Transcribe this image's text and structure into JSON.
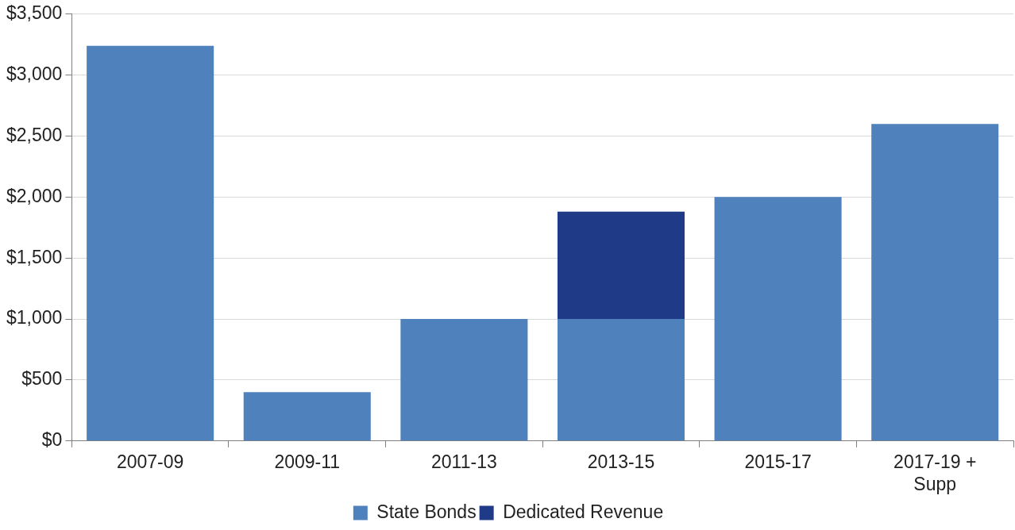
{
  "chart_data": {
    "type": "bar",
    "stacked": true,
    "categories": [
      "2007-09",
      "2009-11",
      "2011-13",
      "2013-15",
      "2015-17",
      "2017-19 + Supp"
    ],
    "series": [
      {
        "name": "State Bonds",
        "color": "#4f81bd",
        "values": [
          3240,
          400,
          1000,
          1000,
          2000,
          2600
        ]
      },
      {
        "name": "Dedicated Revenue",
        "color": "#1f3b87",
        "values": [
          null,
          null,
          null,
          880,
          null,
          null
        ]
      }
    ],
    "ylim": [
      0,
      3500
    ],
    "yticks": [
      {
        "value": 0,
        "label": "$0"
      },
      {
        "value": 500,
        "label": "$500"
      },
      {
        "value": 1000,
        "label": "$1,000"
      },
      {
        "value": 1500,
        "label": "$1,500"
      },
      {
        "value": 2000,
        "label": "$2,000"
      },
      {
        "value": 2500,
        "label": "$2,500"
      },
      {
        "value": 3000,
        "label": "$3,000"
      },
      {
        "value": 3500,
        "label": "$3,500"
      }
    ],
    "grid": "y",
    "legend": "bottom"
  }
}
